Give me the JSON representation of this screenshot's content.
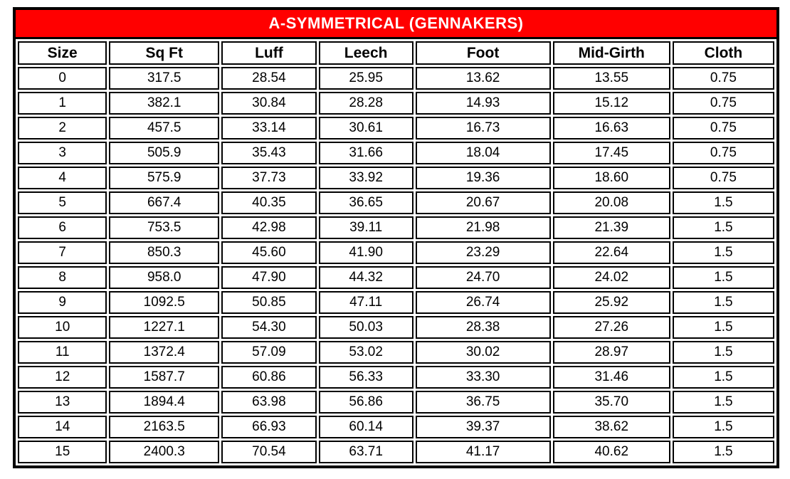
{
  "table": {
    "title": "A-SYMMETRICAL (GENNAKERS)",
    "columns": [
      "Size",
      "Sq Ft",
      "Luff",
      "Leech",
      "Foot",
      "Mid-Girth",
      "Cloth"
    ],
    "rows": [
      [
        "0",
        "317.5",
        "28.54",
        "25.95",
        "13.62",
        "13.55",
        "0.75"
      ],
      [
        "1",
        "382.1",
        "30.84",
        "28.28",
        "14.93",
        "15.12",
        "0.75"
      ],
      [
        "2",
        "457.5",
        "33.14",
        "30.61",
        "16.73",
        "16.63",
        "0.75"
      ],
      [
        "3",
        "505.9",
        "35.43",
        "31.66",
        "18.04",
        "17.45",
        "0.75"
      ],
      [
        "4",
        "575.9",
        "37.73",
        "33.92",
        "19.36",
        "18.60",
        "0.75"
      ],
      [
        "5",
        "667.4",
        "40.35",
        "36.65",
        "20.67",
        "20.08",
        "1.5"
      ],
      [
        "6",
        "753.5",
        "42.98",
        "39.11",
        "21.98",
        "21.39",
        "1.5"
      ],
      [
        "7",
        "850.3",
        "45.60",
        "41.90",
        "23.29",
        "22.64",
        "1.5"
      ],
      [
        "8",
        "958.0",
        "47.90",
        "44.32",
        "24.70",
        "24.02",
        "1.5"
      ],
      [
        "9",
        "1092.5",
        "50.85",
        "47.11",
        "26.74",
        "25.92",
        "1.5"
      ],
      [
        "10",
        "1227.1",
        "54.30",
        "50.03",
        "28.38",
        "27.26",
        "1.5"
      ],
      [
        "11",
        "1372.4",
        "57.09",
        "53.02",
        "30.02",
        "28.97",
        "1.5"
      ],
      [
        "12",
        "1587.7",
        "60.86",
        "56.33",
        "33.30",
        "31.46",
        "1.5"
      ],
      [
        "13",
        "1894.4",
        "63.98",
        "56.86",
        "36.75",
        "35.70",
        "1.5"
      ],
      [
        "14",
        "2163.5",
        "66.93",
        "60.14",
        "39.37",
        "38.62",
        "1.5"
      ],
      [
        "15",
        "2400.3",
        "70.54",
        "63.71",
        "41.17",
        "40.62",
        "1.5"
      ]
    ]
  },
  "colors": {
    "title_bg": "#ff0000",
    "title_text": "#ffffff",
    "border": "#000000",
    "cell_bg": "#ffffff",
    "cell_text": "#000000"
  }
}
